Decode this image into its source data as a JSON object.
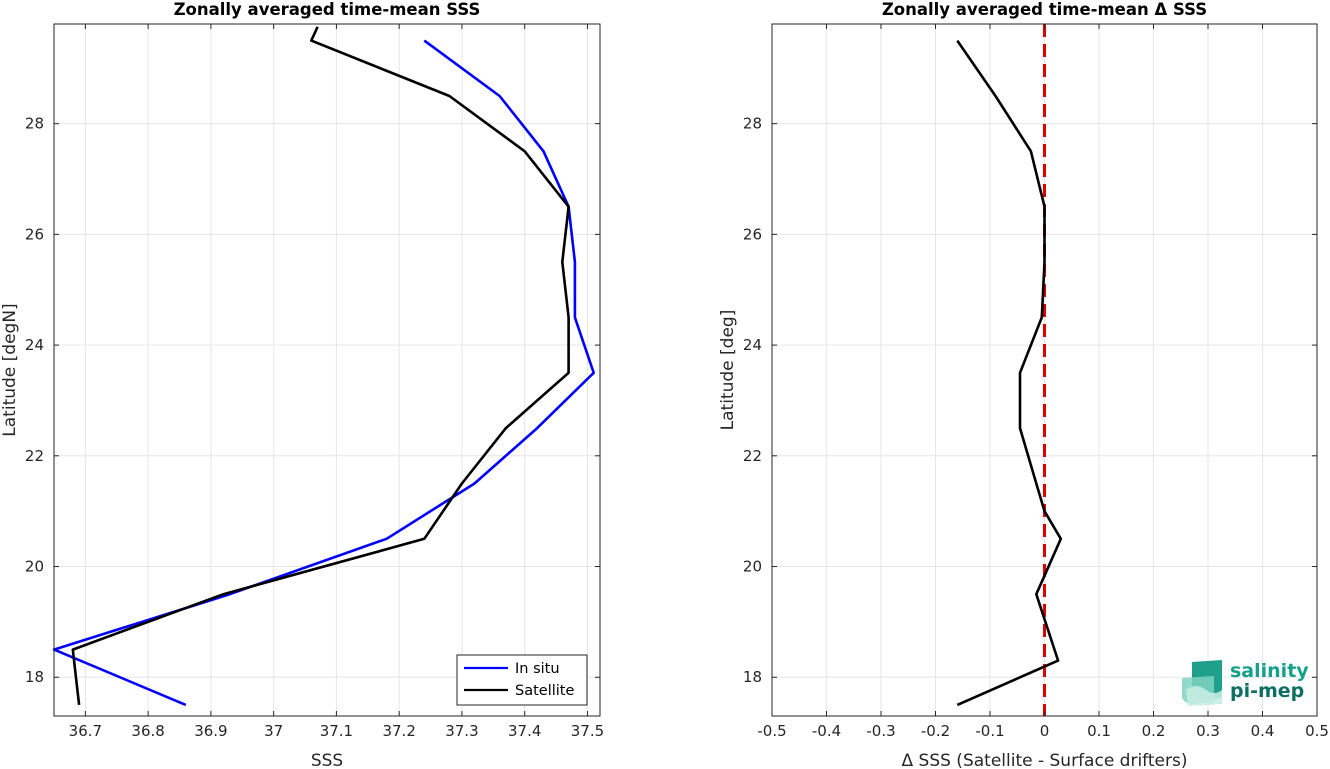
{
  "chart_data": [
    {
      "type": "line",
      "title": "Zonally averaged time-mean SSS",
      "xlabel": "SSS",
      "ylabel": "Latitude [degN]",
      "xlim": [
        36.65,
        37.52
      ],
      "ylim": [
        17.3,
        29.8
      ],
      "xticks": [
        "36.7",
        "36.8",
        "36.9",
        "37",
        "37.1",
        "37.2",
        "37.3",
        "37.4",
        "37.5"
      ],
      "yticks": [
        "18",
        "20",
        "22",
        "24",
        "26",
        "28"
      ],
      "grid": true,
      "legend": "bottom-right",
      "series": [
        {
          "name": "In situ",
          "color": "#0000ff",
          "points": [
            [
              36.86,
              17.5
            ],
            [
              36.65,
              18.5
            ],
            [
              36.93,
              19.5
            ],
            [
              37.18,
              20.5
            ],
            [
              37.32,
              21.5
            ],
            [
              37.42,
              22.5
            ],
            [
              37.51,
              23.5
            ],
            [
              37.48,
              24.5
            ],
            [
              37.48,
              25.5
            ],
            [
              37.47,
              26.5
            ],
            [
              37.43,
              27.5
            ],
            [
              37.36,
              28.5
            ],
            [
              37.24,
              29.5
            ]
          ]
        },
        {
          "name": "Satellite",
          "color": "#000000",
          "points": [
            [
              36.69,
              17.5
            ],
            [
              36.68,
              18.5
            ],
            [
              36.92,
              19.5
            ],
            [
              37.24,
              20.5
            ],
            [
              37.3,
              21.5
            ],
            [
              37.37,
              22.5
            ],
            [
              37.47,
              23.5
            ],
            [
              37.47,
              24.5
            ],
            [
              37.46,
              25.5
            ],
            [
              37.47,
              26.5
            ],
            [
              37.4,
              27.5
            ],
            [
              37.28,
              28.5
            ],
            [
              37.06,
              29.5
            ],
            [
              37.07,
              29.75
            ]
          ]
        }
      ]
    },
    {
      "type": "line",
      "title": "Zonally averaged time-mean Δ SSS",
      "xlabel": "Δ SSS (Satellite - Surface drifters)",
      "ylabel": "Latitude [deg]",
      "xlim": [
        -0.5,
        0.5
      ],
      "ylim": [
        17.3,
        29.8
      ],
      "xticks": [
        "-0.5",
        "-0.4",
        "-0.3",
        "-0.2",
        "-0.1",
        "0",
        "0.1",
        "0.2",
        "0.3",
        "0.4",
        "0.5"
      ],
      "yticks": [
        "18",
        "20",
        "22",
        "24",
        "26",
        "28"
      ],
      "grid": true,
      "reference_line": {
        "x": 0,
        "color": "#dd0000",
        "style": "dashed"
      },
      "series": [
        {
          "color": "#000000",
          "points": [
            [
              -0.16,
              17.5
            ],
            [
              0.025,
              18.3
            ],
            [
              -0.015,
              19.5
            ],
            [
              0.03,
              20.5
            ],
            [
              0.0,
              21.0
            ],
            [
              -0.015,
              21.5
            ],
            [
              -0.045,
              22.5
            ],
            [
              -0.045,
              23.5
            ],
            [
              -0.005,
              24.5
            ],
            [
              0.0,
              25.5
            ],
            [
              0.0,
              26.5
            ],
            [
              -0.025,
              27.5
            ],
            [
              -0.09,
              28.5
            ],
            [
              -0.16,
              29.5
            ]
          ]
        }
      ]
    }
  ],
  "logo": {
    "line1": "salinity",
    "line2": "pi-mep"
  }
}
